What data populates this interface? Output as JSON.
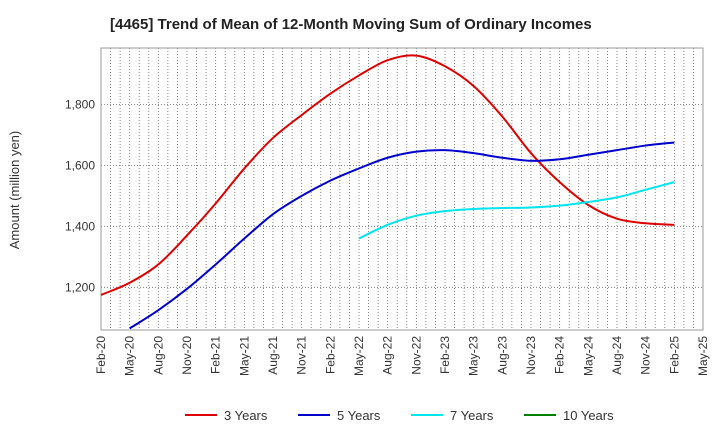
{
  "chart_data": {
    "type": "line",
    "title": "[4465]  Trend of Mean of 12-Month Moving Sum of Ordinary Incomes",
    "xlabel": "",
    "ylabel": "Amount (million yen)",
    "x_ticks": [
      "Feb-20",
      "May-20",
      "Aug-20",
      "Nov-20",
      "Feb-21",
      "May-21",
      "Aug-21",
      "Nov-21",
      "Feb-22",
      "May-22",
      "Aug-22",
      "Nov-22",
      "Feb-23",
      "May-23",
      "Aug-23",
      "Nov-23",
      "Feb-24",
      "May-24",
      "Aug-24",
      "Nov-24",
      "Feb-25",
      "May-25"
    ],
    "y_ticks": [
      1200,
      1400,
      1600,
      1800
    ],
    "y_tick_labels": [
      "1,200",
      "1,400",
      "1,600",
      "1,800"
    ],
    "ylim": [
      1060,
      1985
    ],
    "grid": true,
    "legend_position": "bottom",
    "series": [
      {
        "name": "3 Years",
        "color": "#dd0000",
        "start_index": 0,
        "values": [
          1175,
          1215,
          1275,
          1370,
          1475,
          1590,
          1690,
          1765,
          1835,
          1895,
          1945,
          1960,
          1925,
          1860,
          1760,
          1640,
          1545,
          1470,
          1425,
          1410,
          1405
        ]
      },
      {
        "name": "5 Years",
        "color": "#0000cc",
        "start_index": 1,
        "values": [
          1065,
          1125,
          1195,
          1275,
          1360,
          1440,
          1500,
          1550,
          1590,
          1625,
          1645,
          1650,
          1640,
          1625,
          1615,
          1620,
          1635,
          1650,
          1665,
          1675
        ]
      },
      {
        "name": "7 Years",
        "color": "#00e5ee",
        "start_index": 9,
        "values": [
          1360,
          1405,
          1435,
          1450,
          1457,
          1460,
          1462,
          1468,
          1480,
          1495,
          1520,
          1545
        ]
      },
      {
        "name": "10 Years",
        "color": "#008000",
        "start_index": 0,
        "values": []
      }
    ]
  }
}
